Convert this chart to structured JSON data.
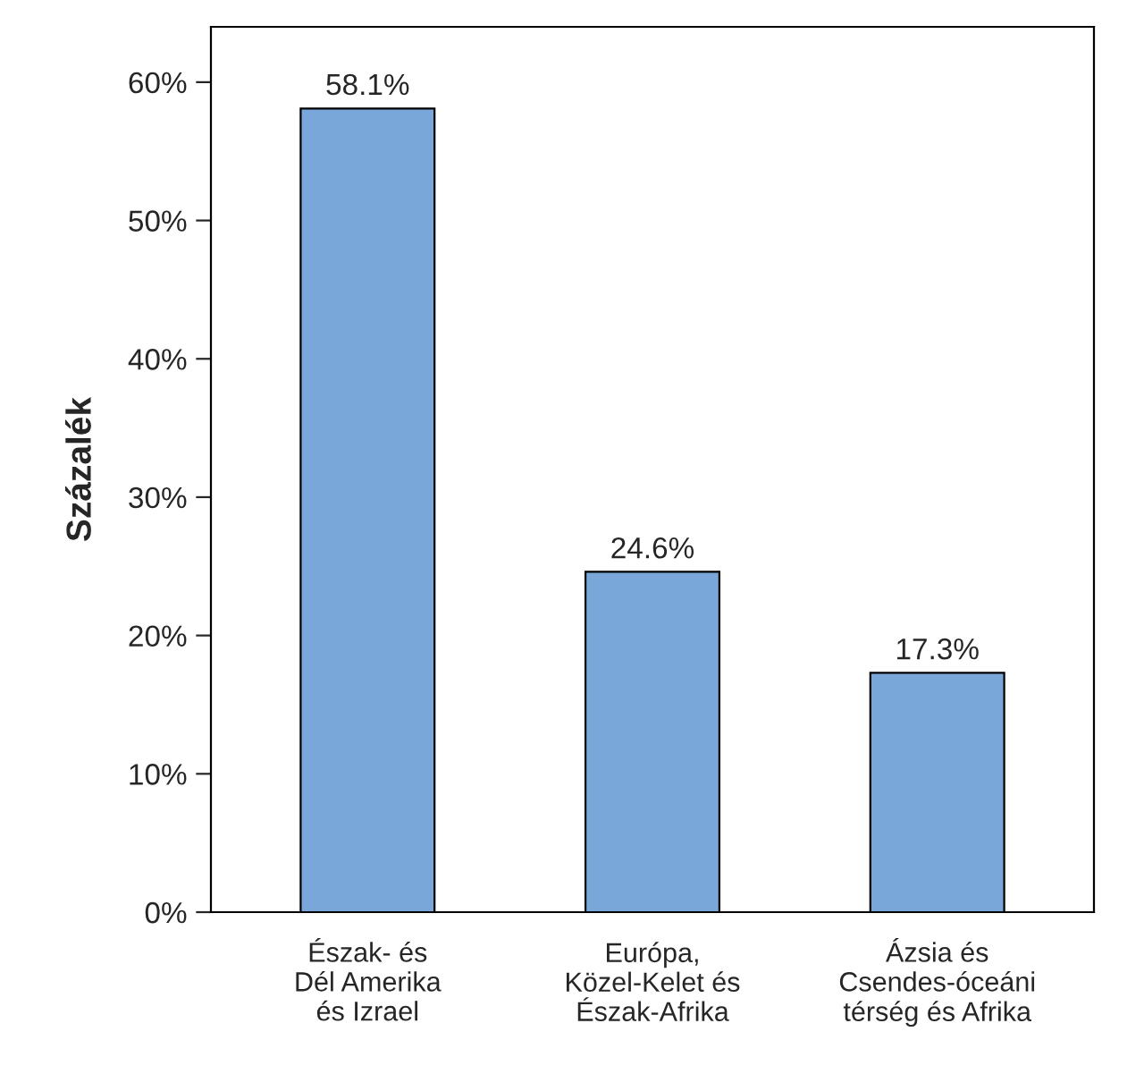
{
  "chart_data": {
    "type": "bar",
    "ylabel": "Százalék",
    "categories": [
      "Észak- és\nDél Amerika\nés Izrael",
      "Európa,\nKözel-Kelet és\nÉszak-Afrika",
      "Ázsia és\nCsendes-óceáni\ntérség és Afrika"
    ],
    "values": [
      58.1,
      24.6,
      17.3
    ],
    "value_labels": [
      "58.1%",
      "24.6%",
      "17.3%"
    ],
    "color": "#79a7d9",
    "ylim": [
      0,
      64
    ],
    "yticks": [
      {
        "value": 0,
        "label": "0%"
      },
      {
        "value": 10,
        "label": "10%"
      },
      {
        "value": 20,
        "label": "20%"
      },
      {
        "value": 30,
        "label": "30%"
      },
      {
        "value": 40,
        "label": "40%"
      },
      {
        "value": 50,
        "label": "50%"
      },
      {
        "value": 60,
        "label": "60%"
      }
    ],
    "grid": false
  }
}
